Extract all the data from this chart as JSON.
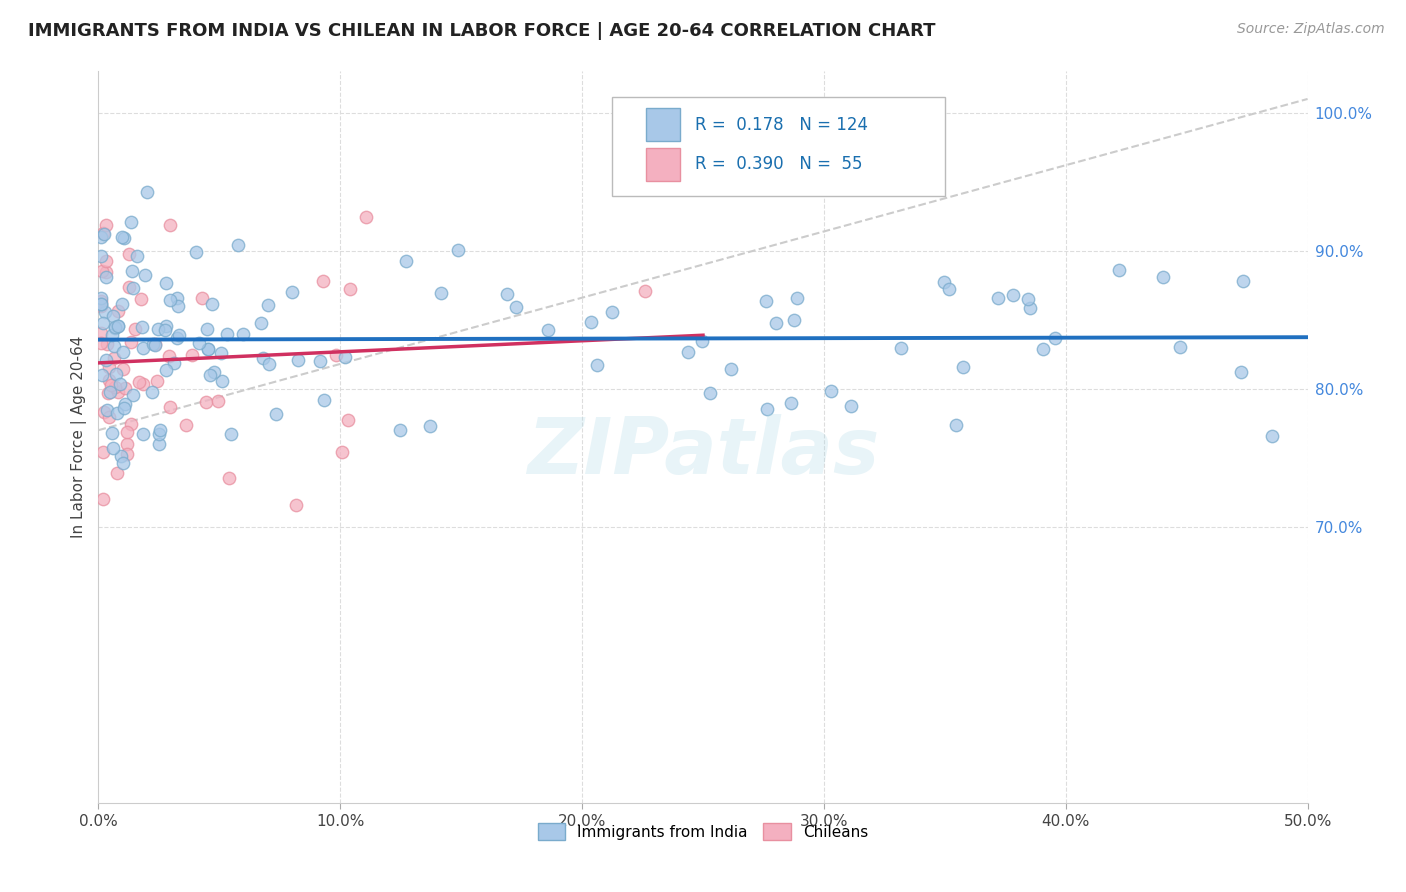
{
  "title": "IMMIGRANTS FROM INDIA VS CHILEAN IN LABOR FORCE | AGE 20-64 CORRELATION CHART",
  "source": "Source: ZipAtlas.com",
  "ylabel": "In Labor Force | Age 20-64",
  "xlim": [
    0.0,
    0.5
  ],
  "ylim": [
    0.5,
    1.03
  ],
  "xtick_vals": [
    0.0,
    0.1,
    0.2,
    0.3,
    0.4,
    0.5
  ],
  "xtick_labels": [
    "0.0%",
    "10.0%",
    "20.0%",
    "30.0%",
    "40.0%",
    "50.0%"
  ],
  "ytick_vals": [
    0.7,
    0.8,
    0.9,
    1.0
  ],
  "ytick_labels": [
    "70.0%",
    "80.0%",
    "90.0%",
    "100.0%"
  ],
  "blue_fill": "#a8c8e8",
  "blue_edge": "#7aabcc",
  "pink_fill": "#f4b0c0",
  "pink_edge": "#e890a0",
  "trend_blue_color": "#2070c0",
  "trend_pink_color": "#d03060",
  "ref_line_color": "#cccccc",
  "grid_color": "#dddddd",
  "R_blue": 0.178,
  "N_blue": 124,
  "R_pink": 0.39,
  "N_pink": 55,
  "legend_label_blue": "Immigrants from India",
  "legend_label_pink": "Chileans",
  "watermark": "ZIPatlas",
  "title_color": "#222222",
  "source_color": "#999999",
  "right_tick_color": "#4488dd",
  "title_fontsize": 13,
  "axis_label_fontsize": 11,
  "tick_fontsize": 11,
  "legend_fontsize": 11,
  "source_fontsize": 10,
  "marker_size": 80
}
